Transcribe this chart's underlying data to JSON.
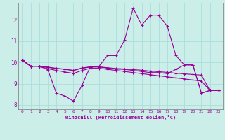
{
  "xlabel": "Windchill (Refroidissement éolien,°C)",
  "background_color": "#cceee8",
  "grid_color": "#aadddd",
  "line_color": "#990099",
  "xlim": [
    -0.5,
    23.5
  ],
  "ylim": [
    7.8,
    12.8
  ],
  "yticks": [
    8,
    9,
    10,
    11,
    12
  ],
  "xticks": [
    0,
    1,
    2,
    3,
    4,
    5,
    6,
    7,
    8,
    9,
    10,
    11,
    12,
    13,
    14,
    15,
    16,
    17,
    18,
    19,
    20,
    21,
    22,
    23
  ],
  "lines": [
    [
      10.1,
      9.82,
      9.82,
      9.65,
      8.55,
      8.42,
      8.18,
      8.92,
      9.82,
      9.82,
      10.32,
      10.32,
      11.05,
      12.55,
      11.75,
      12.22,
      12.22,
      11.7,
      10.32,
      9.88,
      9.88,
      8.55,
      8.68,
      8.68
    ],
    [
      10.1,
      9.82,
      9.82,
      9.7,
      9.62,
      9.55,
      9.48,
      9.62,
      9.72,
      9.72,
      9.67,
      9.62,
      9.57,
      9.52,
      9.47,
      9.42,
      9.37,
      9.32,
      9.27,
      9.22,
      9.17,
      9.12,
      8.68,
      8.68
    ],
    [
      10.1,
      9.82,
      9.82,
      9.78,
      9.72,
      9.68,
      9.62,
      9.72,
      9.78,
      9.78,
      9.73,
      9.68,
      9.67,
      9.62,
      9.57,
      9.52,
      9.52,
      9.47,
      9.67,
      9.88,
      9.88,
      8.55,
      8.68,
      8.68
    ],
    [
      10.1,
      9.82,
      9.82,
      9.76,
      9.71,
      9.67,
      9.62,
      9.74,
      9.79,
      9.79,
      9.75,
      9.71,
      9.69,
      9.66,
      9.63,
      9.59,
      9.56,
      9.53,
      9.49,
      9.46,
      9.43,
      9.4,
      8.68,
      8.68
    ]
  ]
}
